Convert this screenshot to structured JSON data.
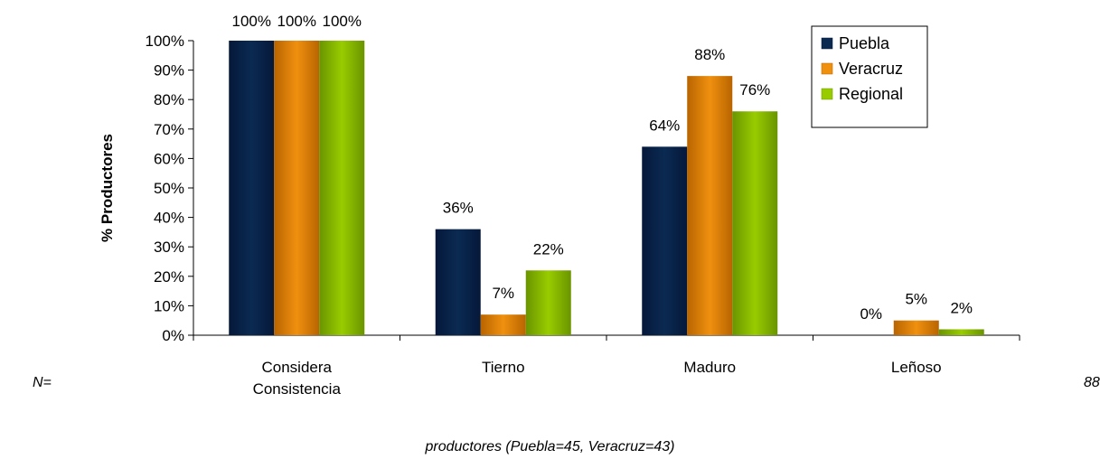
{
  "chart_data": {
    "type": "bar",
    "title": "",
    "xlabel": "",
    "ylabel": "% Productores",
    "ylim": [
      0,
      100
    ],
    "yticks": [
      "0%",
      "10%",
      "20%",
      "30%",
      "40%",
      "50%",
      "60%",
      "70%",
      "80%",
      "90%",
      "100%"
    ],
    "categories": [
      "Considera Consistencia",
      "Tierno",
      "Maduro",
      "Leñoso"
    ],
    "category_lines": [
      [
        "Considera",
        "Consistencia"
      ],
      [
        "Tierno"
      ],
      [
        "Maduro"
      ],
      [
        "Leñoso"
      ]
    ],
    "series": [
      {
        "name": "Puebla",
        "values": [
          100,
          36,
          64,
          0
        ],
        "labels": [
          "100%",
          "36%",
          "64%",
          "0%"
        ],
        "color": "#0b2a52",
        "shade": "#05183a"
      },
      {
        "name": "Veracruz",
        "values": [
          100,
          7,
          88,
          5
        ],
        "labels": [
          "100%",
          "7%",
          "88%",
          "5%"
        ],
        "color": "#f0900f",
        "shade": "#b86400"
      },
      {
        "name": "Regional",
        "values": [
          100,
          22,
          76,
          2
        ],
        "labels": [
          "100%",
          "22%",
          "76%",
          "2%"
        ],
        "color": "#99cc00",
        "shade": "#6a9400"
      }
    ],
    "legend_position": "top-right",
    "grid": false
  },
  "notes": {
    "n_label": "N=",
    "n_value": "88",
    "footnote": "productores (Puebla=45, Veracruz=43)"
  }
}
